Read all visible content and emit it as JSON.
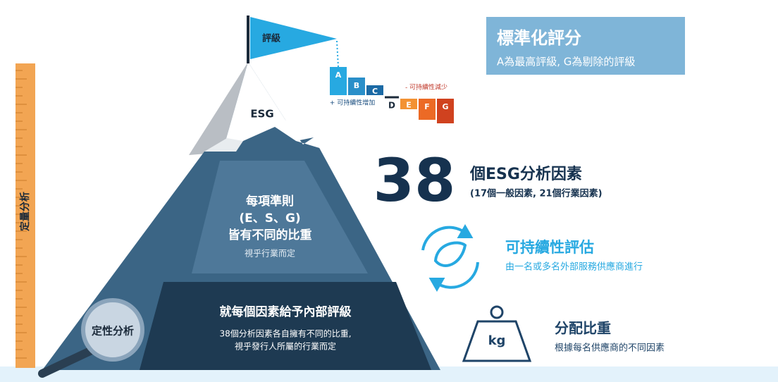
{
  "flag": {
    "label": "評級"
  },
  "ratings": {
    "letters": [
      "A",
      "B",
      "C",
      "D",
      "E",
      "F",
      "G"
    ],
    "increase": "+ 可持續性增加",
    "decrease": "- 可持續性減少"
  },
  "peak": {
    "label": "ESG"
  },
  "standard": {
    "title": "標準化評分",
    "subtitle": "A為最高評級, G為剔除的評級"
  },
  "quantitative": {
    "label": "定量分析"
  },
  "mountain": {
    "upper": {
      "lines": [
        "每項準則",
        "(E、S、G)",
        "皆有不同的比重"
      ],
      "note": "視乎行業而定"
    },
    "lower": {
      "title": "就每個因素給予內部評級",
      "lines": [
        "38個分析因素各自擁有不同的比重,",
        "視乎發行人所屬的行業而定"
      ]
    }
  },
  "qualitative": {
    "label": "定性分析"
  },
  "factors": {
    "number": "38",
    "title": "個ESG分析因素",
    "subtitle": "(17個一般因素, 21個行業因素)"
  },
  "assessment": {
    "title": "可持續性評估",
    "subtitle": "由一名或多名外部服務供應商進行"
  },
  "weighting": {
    "icon": "kg",
    "title": "分配比重",
    "subtitle": "根據每名供應商的不同因素"
  }
}
